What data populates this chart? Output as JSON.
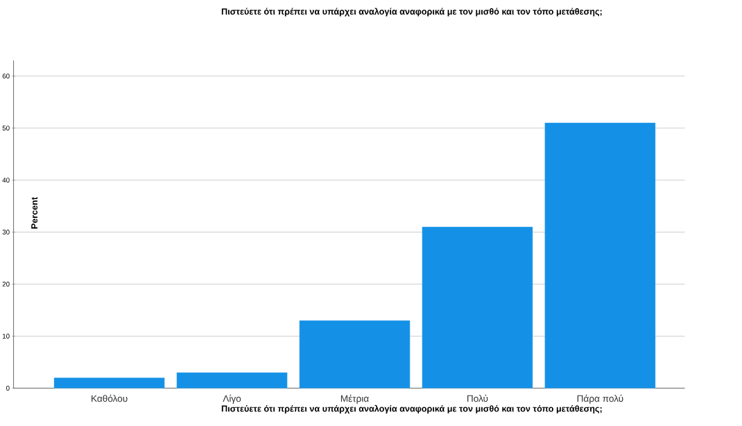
{
  "chart_data": {
    "type": "bar",
    "title": "Πιστεύετε ότι πρέπει να υπάρχει αναλογία αναφορικά με τον μισθό και τον τόπο μετάθεσης;",
    "xlabel": "Πιστεύετε ότι πρέπει να υπάρχει αναλογία αναφορικά με τον μισθό και τον τόπο μετάθεσης;",
    "ylabel": "Percent",
    "categories": [
      "Καθόλου",
      "Λίγο",
      "Μέτρια",
      "Πολύ",
      "Πάρα πολύ"
    ],
    "values": [
      2,
      3,
      13,
      31,
      51
    ],
    "color": "#1491e6",
    "ylim": [
      0,
      63
    ],
    "yticks": [
      0,
      10,
      20,
      30,
      40,
      50,
      60
    ],
    "grid": "y"
  }
}
